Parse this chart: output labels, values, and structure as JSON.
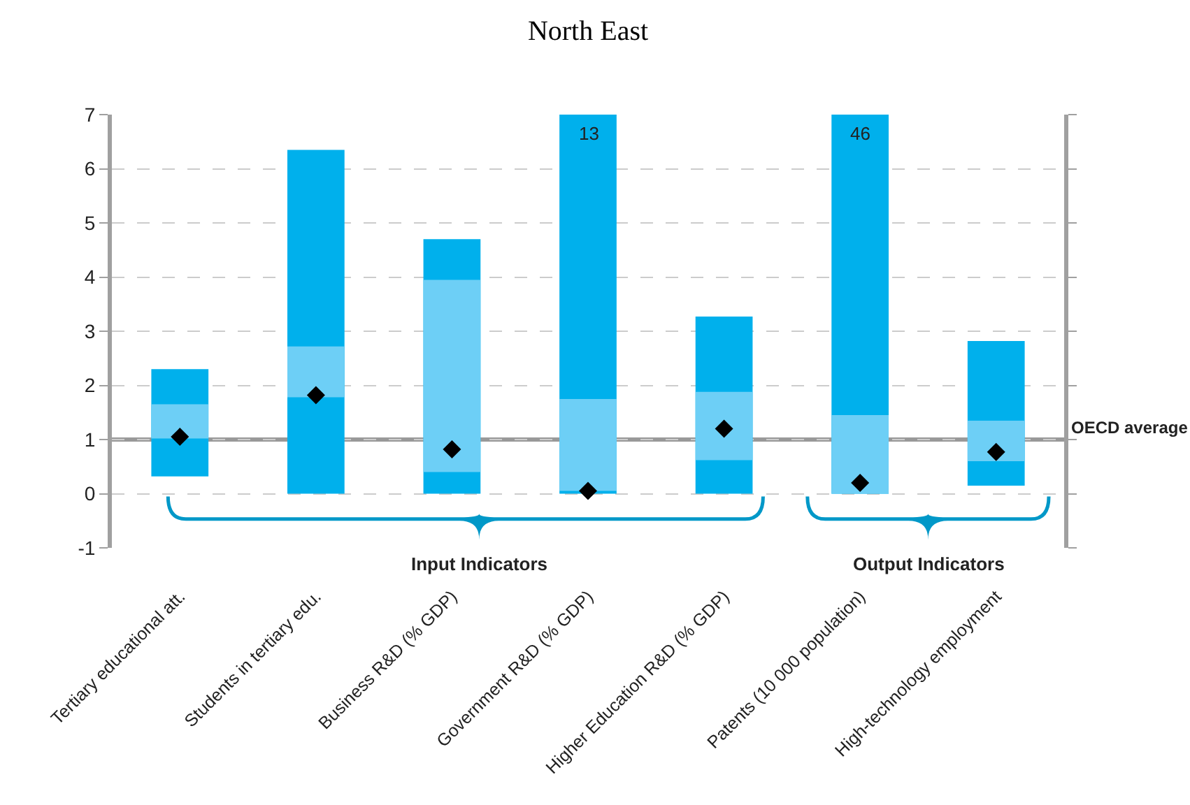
{
  "chart_data": {
    "type": "bar",
    "title": "North East",
    "categories": [
      "Tertiary educational att.",
      "Students in tertiary edu.",
      "Business R&D (% GDP)",
      "Government R&D (% GDP)",
      "Higher Education R&D (% GDP)",
      "Patents (10 000 population)",
      "High-technology employment"
    ],
    "series": [
      {
        "color": "#00b0ec",
        "base": [
          0.32,
          0,
          0,
          0,
          0,
          0,
          0.15
        ],
        "values": [
          1.98,
          6.35,
          4.7,
          13,
          3.27,
          46,
          2.67
        ],
        "value_labels": [
          null,
          null,
          null,
          "13",
          null,
          "46",
          null
        ]
      },
      {
        "color": "#6dcff6",
        "base": [
          1.02,
          1.78,
          0.4,
          0.05,
          0.62,
          0,
          0.6
        ],
        "values": [
          0.63,
          0.94,
          3.55,
          1.7,
          1.26,
          1.45,
          0.75
        ]
      },
      {
        "type": "scatter",
        "marker": "diamond",
        "color": "#000000",
        "values": [
          1.05,
          1.82,
          0.82,
          0.05,
          1.2,
          0.2,
          0.77
        ]
      }
    ],
    "ylim": [
      -1,
      7
    ],
    "yticks": [
      -1,
      0,
      1,
      2,
      3,
      4,
      5,
      6,
      7
    ],
    "grid": "y",
    "ref_lines": [
      {
        "axis": "y",
        "value": 1,
        "label": "OECD average",
        "color": "#999999"
      }
    ],
    "annotations": [
      "Input Indicators",
      "Output Indicators"
    ]
  }
}
